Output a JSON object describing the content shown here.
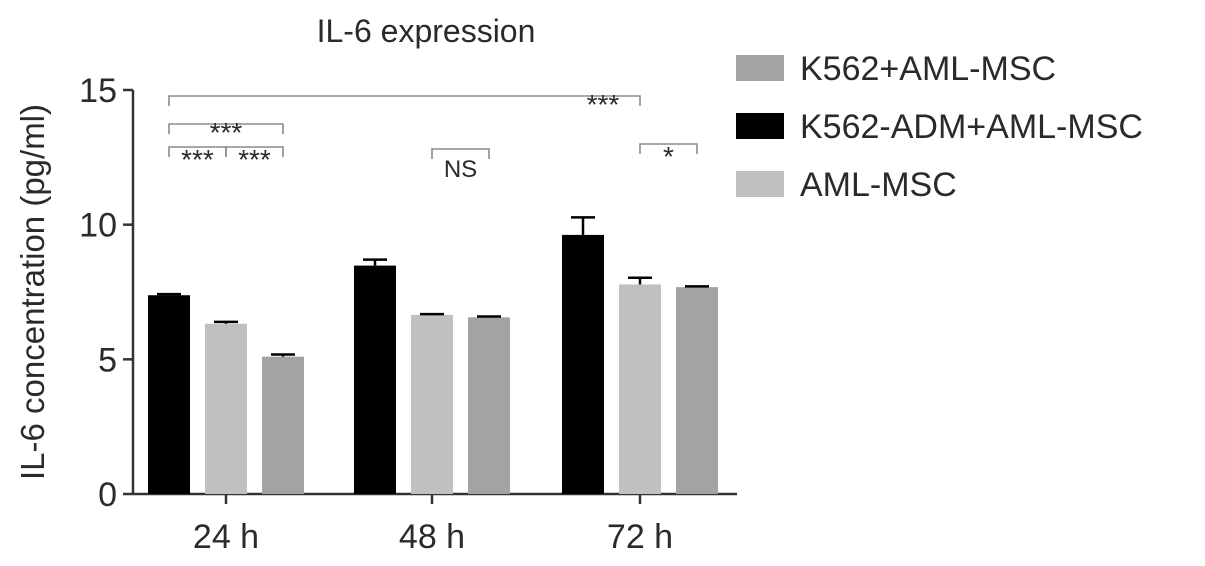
{
  "chart_data": {
    "type": "bar",
    "title": "IL-6 expression",
    "xlabel": "",
    "ylabel": "IL-6 concentration (pg/ml)",
    "ylim": [
      0,
      15
    ],
    "yticks": [
      "0",
      "5",
      "10",
      "15"
    ],
    "categories": [
      "24 h",
      "48 h",
      "72 h"
    ],
    "legend_position": "right",
    "series": [
      {
        "name": "K562-ADM+AML-MSC",
        "color": "#000000",
        "values": [
          7.38,
          8.48,
          9.62
        ],
        "errors": [
          0.04,
          0.22,
          0.65
        ]
      },
      {
        "name": "AML-MSC",
        "color": "#c0c0c0",
        "values": [
          6.32,
          6.65,
          7.78
        ],
        "errors": [
          0.07,
          0.03,
          0.25
        ]
      },
      {
        "name": "K562+AML-MSC",
        "color": "#a3a3a3",
        "values": [
          5.1,
          6.56,
          7.68
        ],
        "errors": [
          0.08,
          0.03,
          0.03
        ]
      }
    ],
    "legend": [
      {
        "name": "K562+AML-MSC",
        "color": "#a3a3a3"
      },
      {
        "name": "K562-ADM+AML-MSC",
        "color": "#000000"
      },
      {
        "name": "AML-MSC",
        "color": "#c0c0c0"
      }
    ],
    "annotations": [
      {
        "label": "***",
        "from": [
          0,
          0
        ],
        "to": [
          2,
          1
        ]
      },
      {
        "label": "***",
        "from": [
          0,
          0
        ],
        "to": [
          0,
          2
        ]
      },
      {
        "label": "***",
        "from": [
          0,
          0
        ],
        "to": [
          0,
          1
        ]
      },
      {
        "label": "***",
        "from": [
          0,
          1
        ],
        "to": [
          0,
          2
        ]
      },
      {
        "label": "NS",
        "from": [
          1,
          1
        ],
        "to": [
          1,
          2
        ]
      },
      {
        "label": "*",
        "from": [
          2,
          1
        ],
        "to": [
          2,
          2
        ]
      }
    ]
  }
}
